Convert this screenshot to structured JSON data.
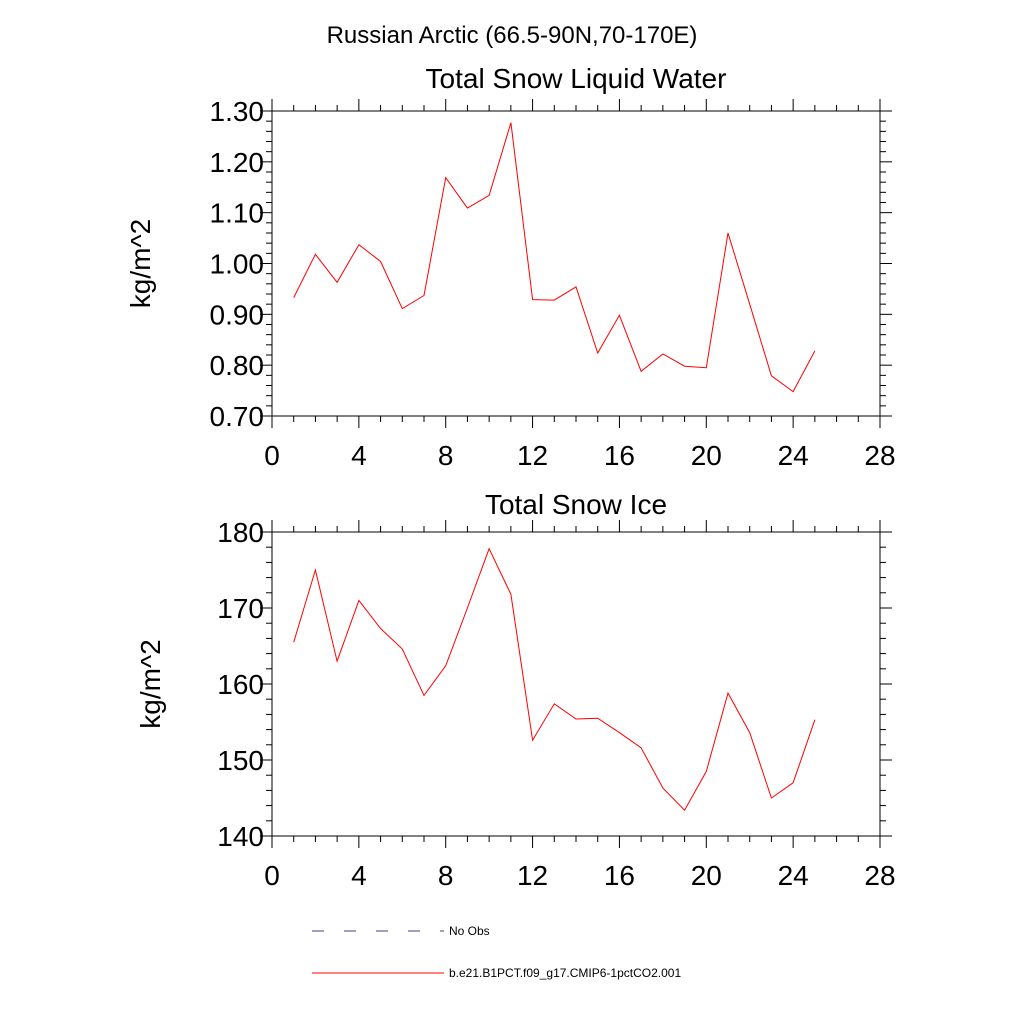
{
  "figure": {
    "supertitle": "Russian Arctic (66.5-90N,70-170E)"
  },
  "chart_data": [
    {
      "type": "line",
      "title": "Total Snow Liquid Water",
      "xlabel": "",
      "ylabel": "kg/m^2",
      "xlim": [
        0,
        28
      ],
      "ylim": [
        0.7,
        1.3
      ],
      "x_ticks": [
        0,
        4,
        8,
        12,
        16,
        20,
        24,
        28
      ],
      "y_ticks": [
        0.7,
        0.8,
        0.9,
        1.0,
        1.1,
        1.2,
        1.3
      ],
      "y_tick_labels": [
        "0.70",
        "0.80",
        "0.90",
        "1.00",
        "1.10",
        "1.20",
        "1.30"
      ],
      "grid": false,
      "x": [
        1,
        2,
        3,
        4,
        5,
        6,
        7,
        8,
        9,
        10,
        11,
        12,
        13,
        14,
        15,
        16,
        17,
        18,
        19,
        20,
        21,
        22,
        23,
        24,
        25
      ],
      "series": [
        {
          "name": "b.e21.B1PCT.f09_g17.CMIP6-1pctCO2.001",
          "color": "#ff0000",
          "values": [
            0.933,
            1.018,
            0.963,
            1.037,
            1.004,
            0.911,
            0.937,
            1.169,
            1.109,
            1.134,
            1.277,
            0.929,
            0.928,
            0.954,
            0.824,
            0.898,
            0.788,
            0.822,
            0.798,
            0.795,
            1.06,
            0.92,
            0.779,
            0.748,
            0.828
          ]
        }
      ]
    },
    {
      "type": "line",
      "title": "Total Snow Ice",
      "xlabel": "",
      "ylabel": "kg/m^2",
      "xlim": [
        0,
        28
      ],
      "ylim": [
        140,
        180
      ],
      "x_ticks": [
        0,
        4,
        8,
        12,
        16,
        20,
        24,
        28
      ],
      "y_ticks": [
        140,
        150,
        160,
        170,
        180
      ],
      "y_tick_labels": [
        "140",
        "150",
        "160",
        "170",
        "180"
      ],
      "grid": false,
      "x": [
        1,
        2,
        3,
        4,
        5,
        6,
        7,
        8,
        9,
        10,
        11,
        12,
        13,
        14,
        15,
        16,
        17,
        18,
        19,
        20,
        21,
        22,
        23,
        24,
        25
      ],
      "series": [
        {
          "name": "b.e21.B1PCT.f09_g17.CMIP6-1pctCO2.001",
          "color": "#ff0000",
          "values": [
            165.5,
            175.0,
            163.0,
            171.0,
            167.3,
            164.6,
            158.5,
            162.4,
            170.0,
            177.8,
            171.8,
            152.6,
            157.4,
            155.4,
            155.5,
            153.6,
            151.6,
            146.3,
            143.4,
            148.5,
            158.8,
            153.6,
            145.0,
            147.0,
            155.3
          ]
        }
      ]
    }
  ],
  "legend": {
    "placement": "bottom",
    "entries": [
      {
        "label": "No Obs",
        "color": "#3d3d8f",
        "style": "dashed"
      },
      {
        "label": "b.e21.B1PCT.f09_g17.CMIP6-1pctCO2.001",
        "color": "#ff0000",
        "style": "solid"
      }
    ]
  }
}
